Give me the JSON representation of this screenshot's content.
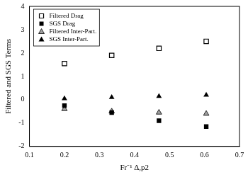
{
  "chart_data": {
    "type": "scatter",
    "x_label": "Fr⁻¹ Δ,p2",
    "y_label": "Filtered and SGS Terms",
    "xlim": [
      0.1,
      0.7
    ],
    "xticks": [
      0.1,
      0.2,
      0.3,
      0.4,
      0.5,
      0.6,
      0.7
    ],
    "ylim": [
      -2,
      4
    ],
    "yticks": [
      -2,
      -1,
      0,
      1,
      2,
      3,
      4
    ],
    "legend": "upper left",
    "series": [
      {
        "name": "Filtered Drag",
        "color": "#000000",
        "marker": "open square",
        "x": [
          0.2,
          0.335,
          0.47,
          0.605
        ],
        "values": [
          1.55,
          1.9,
          2.2,
          2.5
        ]
      },
      {
        "name": "SGS Drag",
        "color": "#000000",
        "marker": "square",
        "x": [
          0.2,
          0.335,
          0.47,
          0.605
        ],
        "values": [
          -0.25,
          -0.55,
          -0.9,
          -1.15
        ]
      },
      {
        "name": "Filtered Inter-Part.",
        "color": "#a0a0a0",
        "marker": "triangle",
        "x": [
          0.2,
          0.335,
          0.47,
          0.605
        ],
        "values": [
          -0.4,
          -0.5,
          -0.55,
          -0.6
        ]
      },
      {
        "name": "SGS Inter-Part.",
        "color": "#000000",
        "marker": "triangle",
        "x": [
          0.2,
          0.335,
          0.47,
          0.605
        ],
        "values": [
          0.05,
          0.1,
          0.15,
          0.2
        ]
      }
    ]
  }
}
